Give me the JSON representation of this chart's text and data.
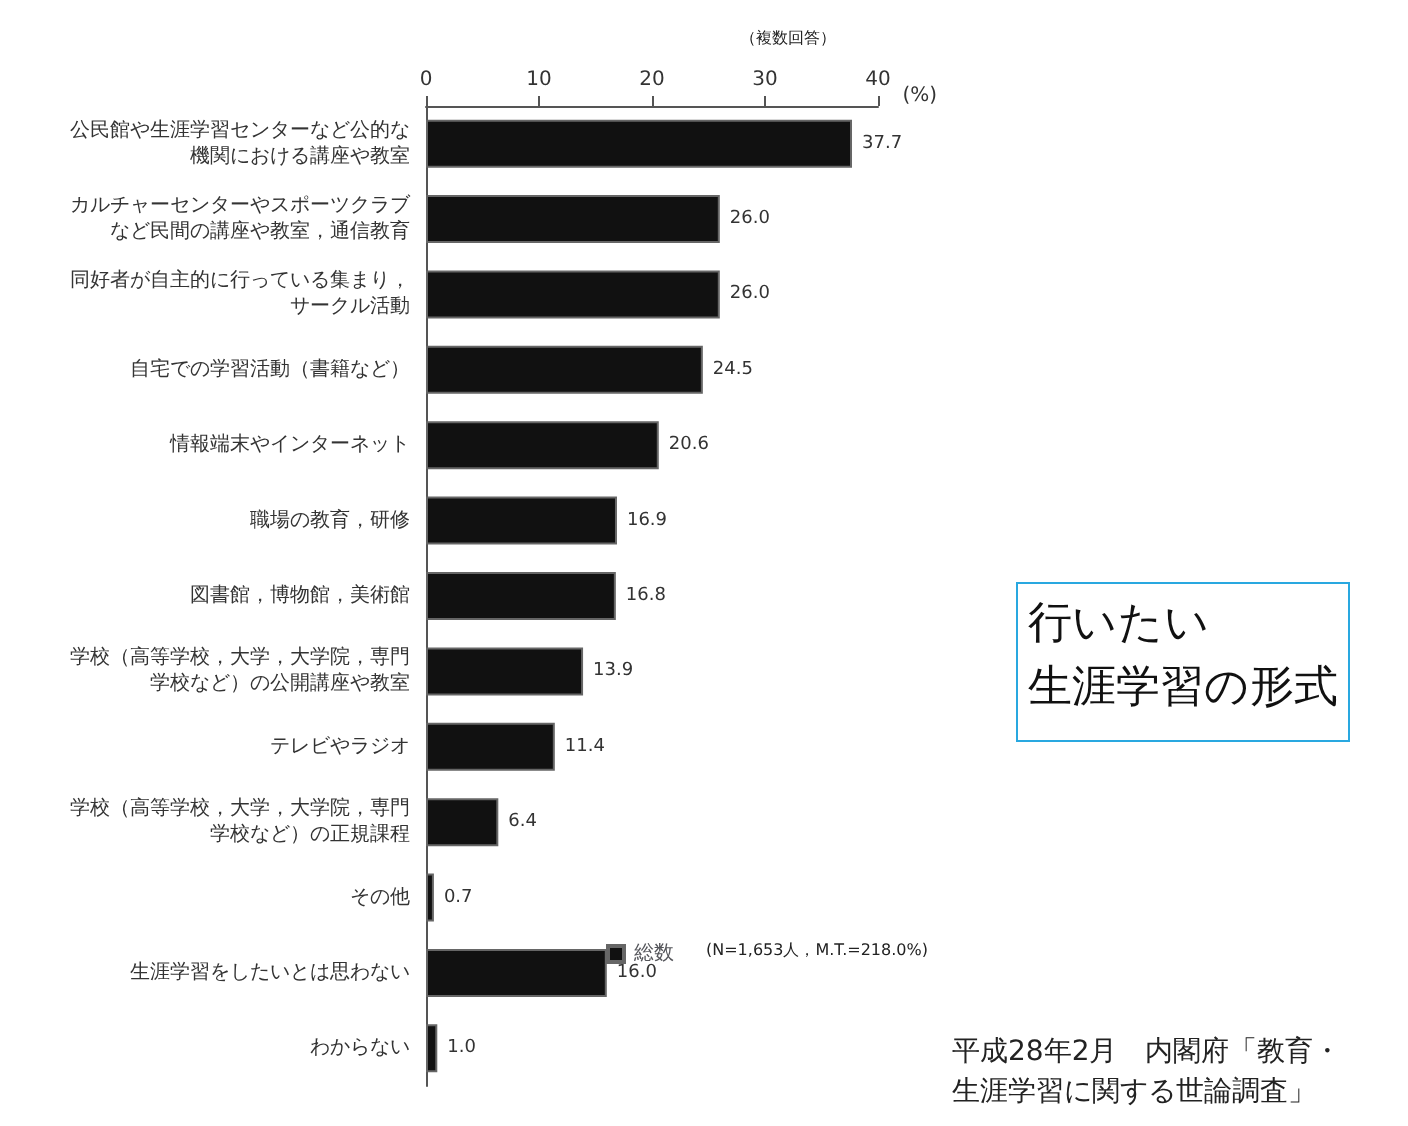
{
  "chart_data": {
    "type": "bar",
    "orientation": "horizontal",
    "title": "行いたい",
    "subtitle": "生涯学習の形式",
    "xlabel": "(%)",
    "annotations": [
      "（複数回答）",
      "(N=1,653人，M.T.=218.0%)",
      "平成28年2月　内閣府「教育・生涯学習に関する世論調査」"
    ],
    "categories": [
      "公民館や生涯学習センターなど公的な機関における講座や教室",
      "カルチャーセンターやスポーツクラブなど民間の講座や教室，通信教育",
      "同好者が自主的に行っている集まり，サークル活動",
      "自宅での学習活動（書籍など）",
      "情報端末やインターネット",
      "職場の教育，研修",
      "図書館，博物館，美術館",
      "学校（高等学校，大学，大学院，専門学校など）の公開講座や教室",
      "テレビやラジオ",
      "学校（高等学校，大学，大学院，専門学校など）の正規課程",
      "その他",
      "生涯学習をしたいとは思わない",
      "わからない"
    ],
    "series": [
      {
        "name": "総数",
        "color": "#111111",
        "values": [
          37.7,
          26.0,
          26.0,
          24.5,
          20.6,
          16.9,
          16.8,
          13.9,
          11.4,
          6.4,
          0.7,
          16.0,
          1.0
        ],
        "value_labels": [
          "37.7",
          "26.0",
          "26.0",
          "24.5",
          "20.6",
          "16.9",
          "16.8",
          "13.9",
          "11.4",
          "6.4",
          "0.7",
          "16.0",
          "1.0"
        ]
      }
    ],
    "xlim": [
      0,
      40
    ],
    "xticks": [
      0,
      10,
      20,
      30,
      40
    ],
    "grid": false,
    "legend": "bottom"
  }
}
